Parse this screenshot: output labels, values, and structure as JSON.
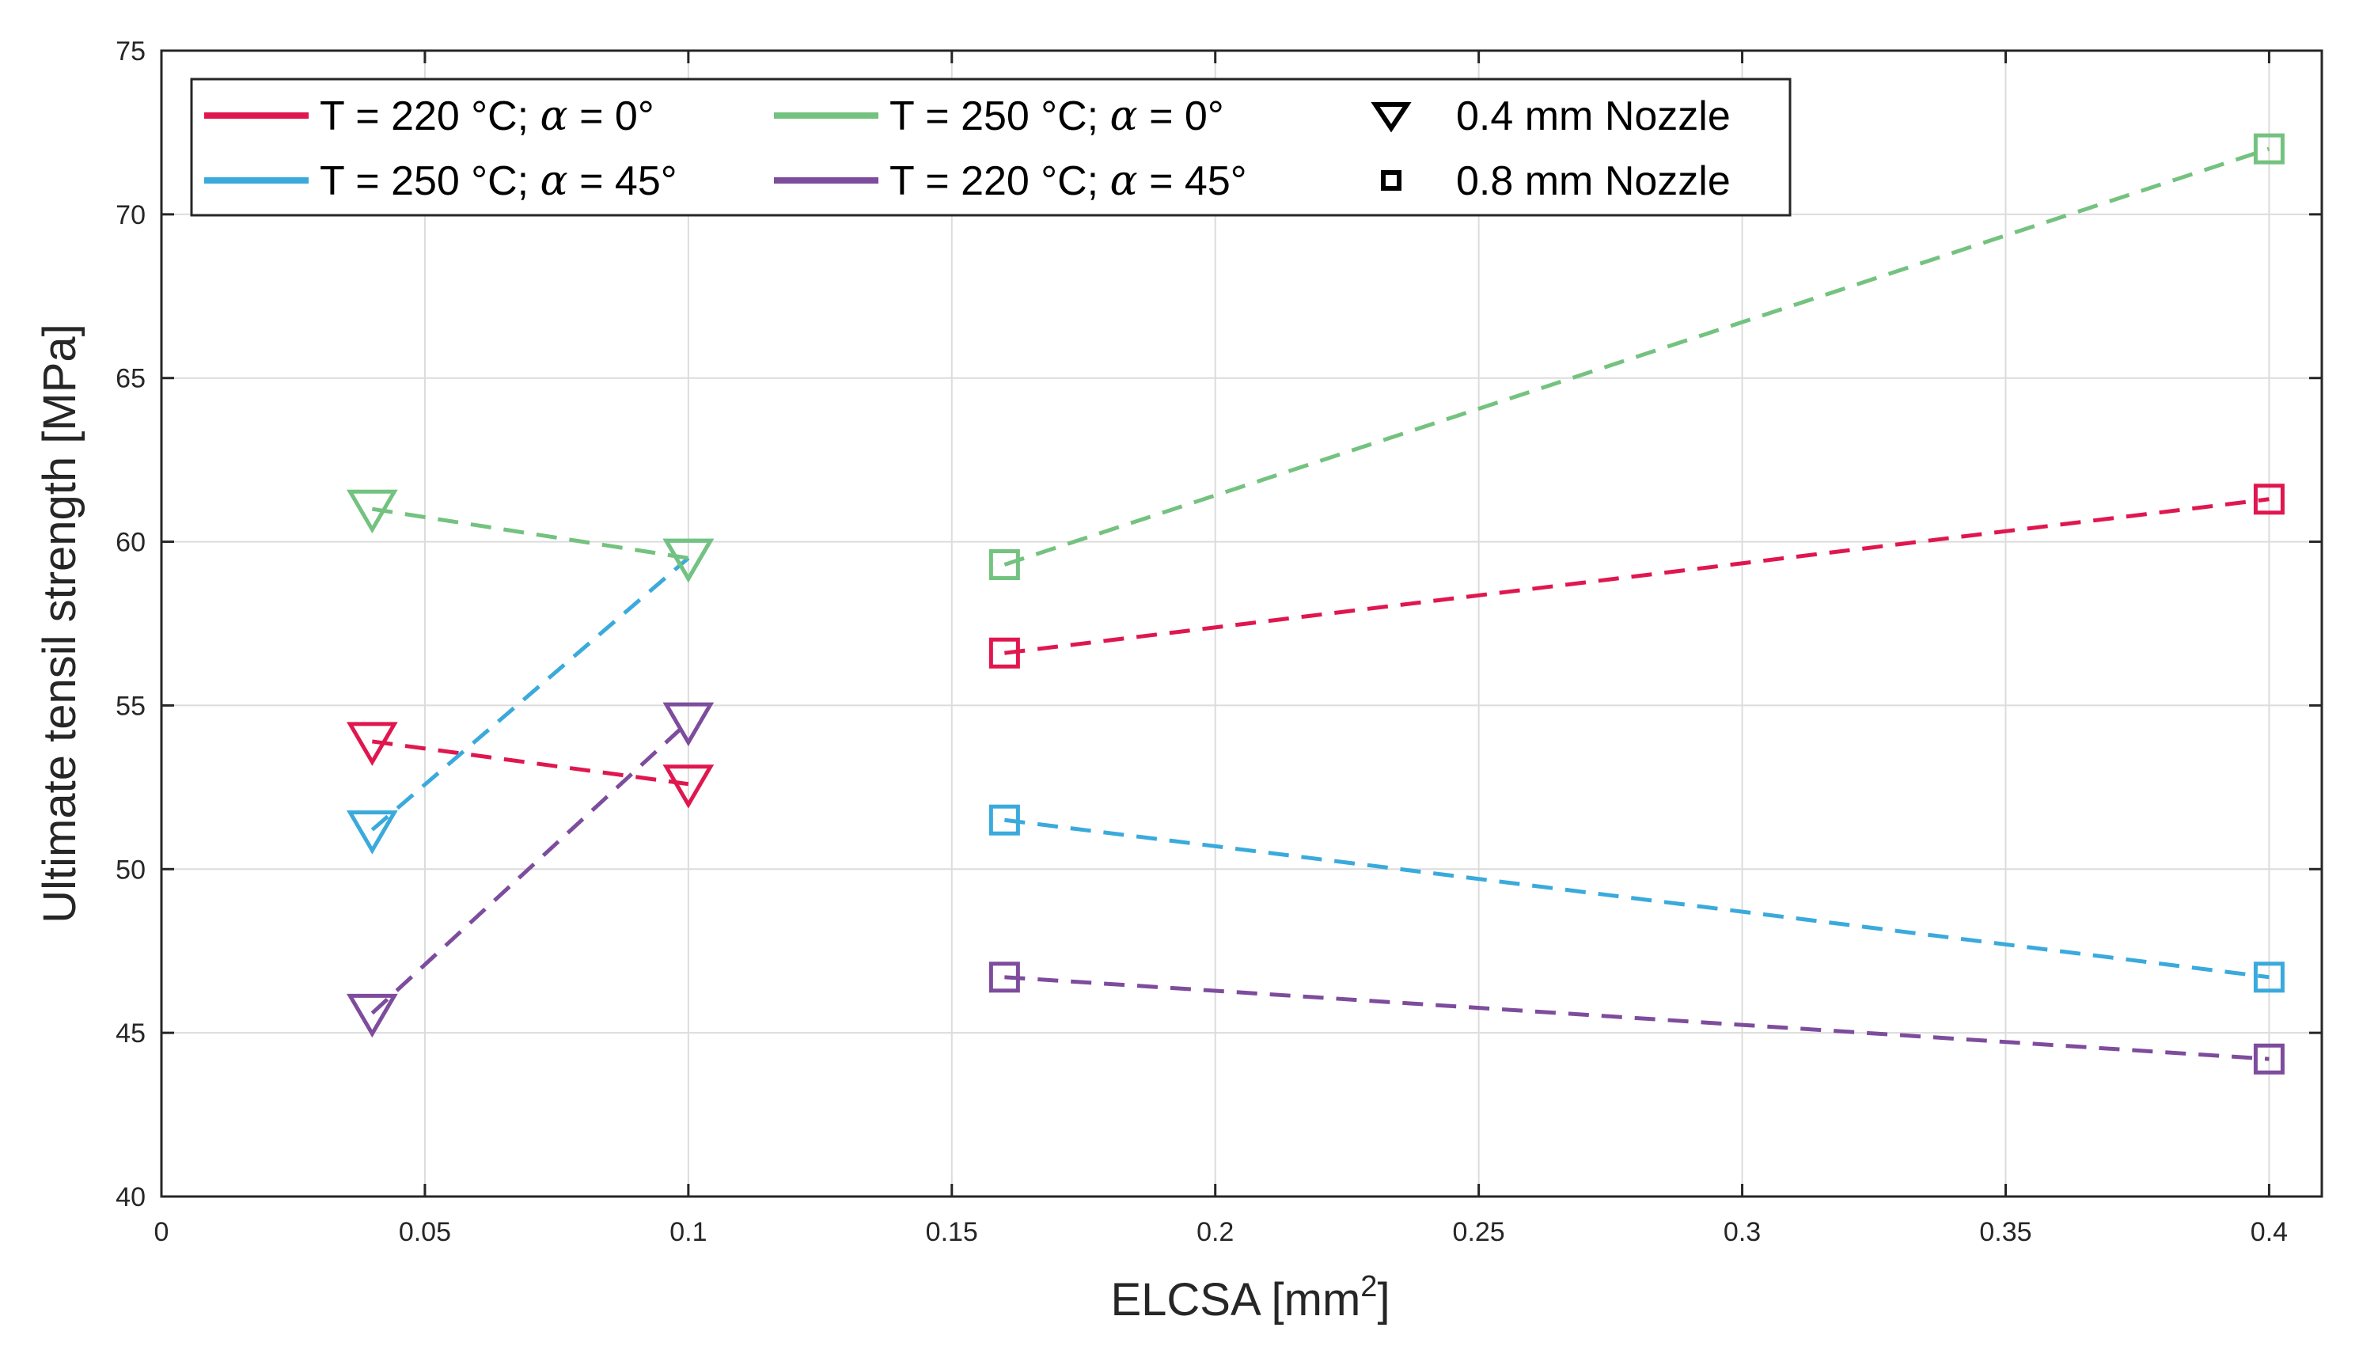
{
  "chart_data": {
    "type": "line",
    "xlabel": "ELCSA [mm",
    "xlabel_superscript": "2",
    "xlabel_suffix": "]",
    "ylabel": "Ultimate tensil strength [MPa]",
    "xlim": [
      0,
      0.41
    ],
    "ylim": [
      40,
      75
    ],
    "xticks": [
      0,
      0.05,
      0.1,
      0.15,
      0.2,
      0.25,
      0.3,
      0.35,
      0.4
    ],
    "xtick_labels": [
      "0",
      "0.05",
      "0.1",
      "0.15",
      "0.2",
      "0.25",
      "0.3",
      "0.35",
      "0.4"
    ],
    "yticks": [
      40,
      45,
      50,
      55,
      60,
      65,
      70,
      75
    ],
    "ytick_labels": [
      "40",
      "45",
      "50",
      "55",
      "60",
      "65",
      "70",
      "75"
    ],
    "grid": true,
    "legend_position": "top-left",
    "series": [
      {
        "name": "T = 220 °C; α = 0°",
        "label_main": "T = 220 °C; ",
        "label_alpha": "α",
        "label_tail": " = 0°",
        "color": "#e0174f",
        "points_04mm": [
          [
            0.04,
            53.9
          ],
          [
            0.1,
            52.6
          ]
        ],
        "points_08mm": [
          [
            0.16,
            56.6
          ],
          [
            0.4,
            61.3
          ]
        ]
      },
      {
        "name": "T = 250 °C; α = 45°",
        "label_main": "T = 250 °C; ",
        "label_alpha": "α",
        "label_tail": " = 45°",
        "color": "#3aaadc",
        "points_04mm": [
          [
            0.04,
            51.2
          ],
          [
            0.1,
            59.5
          ]
        ],
        "points_08mm": [
          [
            0.16,
            51.5
          ],
          [
            0.4,
            46.7
          ]
        ]
      },
      {
        "name": "T = 250 °C; α = 0°",
        "label_main": "T = 250 °C; ",
        "label_alpha": "α",
        "label_tail": " = 0°",
        "color": "#74c27f",
        "points_04mm": [
          [
            0.04,
            61.0
          ],
          [
            0.1,
            59.5
          ]
        ],
        "points_08mm": [
          [
            0.16,
            59.3
          ],
          [
            0.4,
            72.0
          ]
        ]
      },
      {
        "name": "T = 220 °C; α = 45°",
        "label_main": "T = 220 °C; ",
        "label_alpha": "α",
        "label_tail": " = 45°",
        "color": "#7e4c9d",
        "points_04mm": [
          [
            0.04,
            45.6
          ],
          [
            0.1,
            54.5
          ]
        ],
        "points_08mm": [
          [
            0.16,
            46.7
          ],
          [
            0.4,
            44.2
          ]
        ]
      }
    ],
    "marker_legend": [
      {
        "marker": "triangle-down",
        "label": "0.4 mm Nozzle"
      },
      {
        "marker": "square",
        "label": "0.8 mm Nozzle"
      }
    ]
  }
}
